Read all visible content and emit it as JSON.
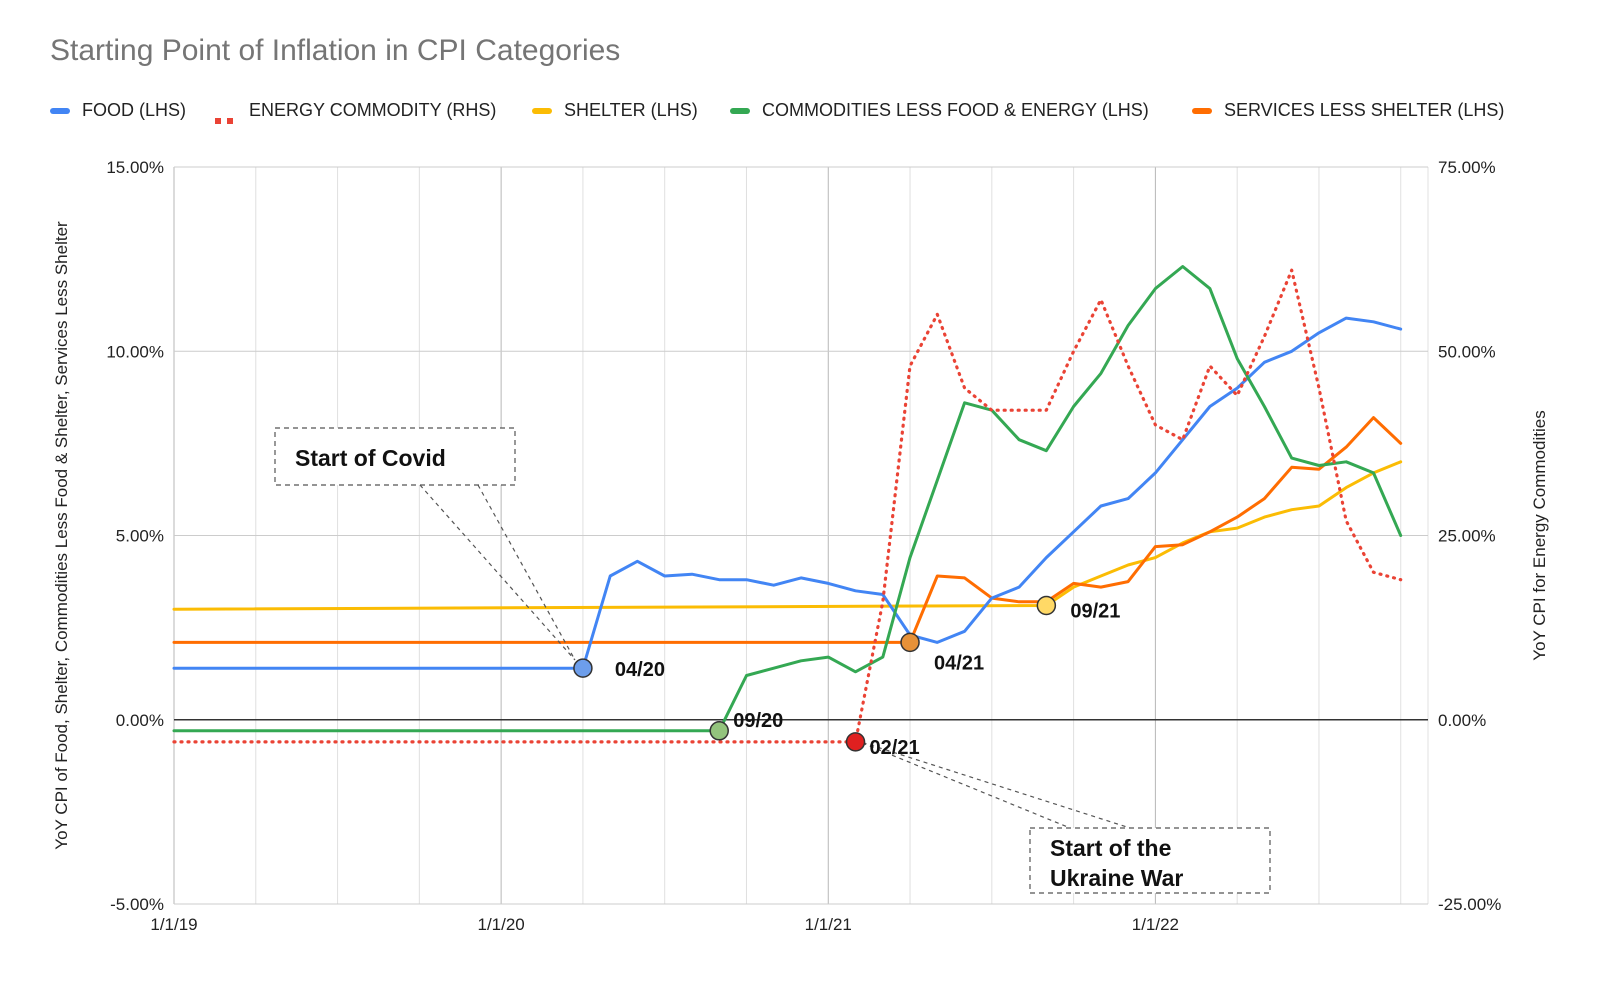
{
  "chart_data": {
    "type": "line",
    "title": "Starting Point of Inflation in CPI Categories",
    "xlabel": "",
    "ylabel_left": "YoY CPI of Food, Shelter, Commodities Less Food & Shelter, Services Less Shelter",
    "ylabel_right": "YoY CPI for Energy Commodities",
    "x_ticks": [
      "1/1/19",
      "1/1/20",
      "1/1/21",
      "1/1/22"
    ],
    "x_start": "2019-01",
    "y_left_ticks": [
      "15.00%",
      "10.00%",
      "5.00%",
      "0.00%",
      "-5.00%"
    ],
    "y_right_ticks": [
      "75.00%",
      "50.00%",
      "25.00%",
      "0.00%",
      "-25.00%"
    ],
    "ylim_left": [
      -5,
      15
    ],
    "ylim_right": [
      -25,
      75
    ],
    "grid": true,
    "legend_position": "top",
    "series": [
      {
        "name": "FOOD (LHS)",
        "color": "#4285f4",
        "style": "solid",
        "axis": "left",
        "x": [
          "2019-01",
          "2020-04",
          "2020-05",
          "2020-06",
          "2020-07",
          "2020-08",
          "2020-09",
          "2020-10",
          "2020-11",
          "2020-12",
          "2021-01",
          "2021-02",
          "2021-03",
          "2021-04",
          "2021-05",
          "2021-06",
          "2021-07",
          "2021-08",
          "2021-09",
          "2021-10",
          "2021-11",
          "2021-12",
          "2022-01",
          "2022-02",
          "2022-03",
          "2022-04",
          "2022-05",
          "2022-06",
          "2022-07",
          "2022-08",
          "2022-09",
          "2022-10"
        ],
        "values": [
          1.4,
          1.4,
          3.9,
          4.3,
          3.9,
          3.95,
          3.8,
          3.8,
          3.65,
          3.85,
          3.7,
          3.5,
          3.4,
          2.3,
          2.1,
          2.4,
          3.3,
          3.6,
          4.4,
          5.1,
          5.8,
          6.0,
          6.7,
          7.6,
          8.5,
          9.0,
          9.7,
          10.0,
          10.5,
          10.9,
          10.8,
          10.6
        ]
      },
      {
        "name": "ENERGY COMMODITY (RHS)",
        "color": "#ea4335",
        "style": "dotted",
        "axis": "right",
        "x": [
          "2019-01",
          "2021-02",
          "2021-03",
          "2021-04",
          "2021-05",
          "2021-06",
          "2021-07",
          "2021-08",
          "2021-09",
          "2021-10",
          "2021-11",
          "2021-12",
          "2022-01",
          "2022-02",
          "2022-03",
          "2022-04",
          "2022-05",
          "2022-06",
          "2022-07",
          "2022-08",
          "2022-09",
          "2022-10"
        ],
        "values": [
          -3,
          -3,
          16,
          48,
          55,
          45,
          42,
          42,
          42,
          50,
          57,
          48,
          40,
          38,
          48,
          44,
          52,
          61,
          45,
          27,
          20,
          19
        ]
      },
      {
        "name": "SHELTER (LHS)",
        "color": "#fbbc04",
        "style": "solid",
        "axis": "left",
        "x": [
          "2019-01",
          "2021-09",
          "2021-10",
          "2021-11",
          "2021-12",
          "2022-01",
          "2022-02",
          "2022-03",
          "2022-04",
          "2022-05",
          "2022-06",
          "2022-07",
          "2022-08",
          "2022-09",
          "2022-10"
        ],
        "values": [
          3.0,
          3.1,
          3.6,
          3.9,
          4.2,
          4.4,
          4.8,
          5.1,
          5.2,
          5.5,
          5.7,
          5.8,
          6.3,
          6.7,
          7.0
        ]
      },
      {
        "name": "COMMODITIES LESS FOOD & ENERGY (LHS)",
        "color": "#34a853",
        "style": "solid",
        "axis": "left",
        "x": [
          "2019-01",
          "2020-09",
          "2020-10",
          "2020-11",
          "2020-12",
          "2021-01",
          "2021-02",
          "2021-03",
          "2021-04",
          "2021-05",
          "2021-06",
          "2021-07",
          "2021-08",
          "2021-09",
          "2021-10",
          "2021-11",
          "2021-12",
          "2022-01",
          "2022-02",
          "2022-03",
          "2022-04",
          "2022-05",
          "2022-06",
          "2022-07",
          "2022-08",
          "2022-09",
          "2022-10"
        ],
        "values": [
          -0.3,
          -0.3,
          1.2,
          1.4,
          1.6,
          1.7,
          1.3,
          1.7,
          4.4,
          6.5,
          8.6,
          8.4,
          7.6,
          7.3,
          8.5,
          9.4,
          10.7,
          11.7,
          12.3,
          11.7,
          9.8,
          8.5,
          7.1,
          6.9,
          7.0,
          6.7,
          5.0
        ]
      },
      {
        "name": "SERVICES LESS SHELTER (LHS)",
        "color": "#ff6d01",
        "style": "solid",
        "axis": "left",
        "x": [
          "2019-01",
          "2021-04",
          "2021-05",
          "2021-06",
          "2021-07",
          "2021-08",
          "2021-09",
          "2021-10",
          "2021-11",
          "2021-12",
          "2022-01",
          "2022-02",
          "2022-03",
          "2022-04",
          "2022-05",
          "2022-06",
          "2022-07",
          "2022-08",
          "2022-09",
          "2022-10"
        ],
        "values": [
          2.1,
          2.1,
          3.9,
          3.85,
          3.3,
          3.2,
          3.2,
          3.7,
          3.6,
          3.75,
          4.7,
          4.75,
          5.1,
          5.5,
          6.0,
          6.85,
          6.8,
          7.4,
          8.2,
          7.5
        ]
      }
    ],
    "markers": [
      {
        "label": "04/20",
        "x": "2020-04",
        "y": 1.4,
        "axis": "left",
        "color": "#6d9eeb"
      },
      {
        "label": "09/20",
        "x": "2020-09",
        "y": -0.3,
        "axis": "left",
        "color": "#93c47d"
      },
      {
        "label": "02/21",
        "x": "2021-02",
        "y": -3,
        "axis": "right",
        "color": "#e02020"
      },
      {
        "label": "04/21",
        "x": "2021-04",
        "y": 2.1,
        "axis": "left",
        "color": "#e69138"
      },
      {
        "label": "09/21",
        "x": "2021-09",
        "y": 3.1,
        "axis": "left",
        "color": "#ffd966"
      }
    ],
    "annotations": [
      {
        "text": "Start of Covid",
        "points_to": "04/20"
      },
      {
        "text": "Start of the Ukraine War",
        "points_to": "02/21"
      }
    ]
  }
}
